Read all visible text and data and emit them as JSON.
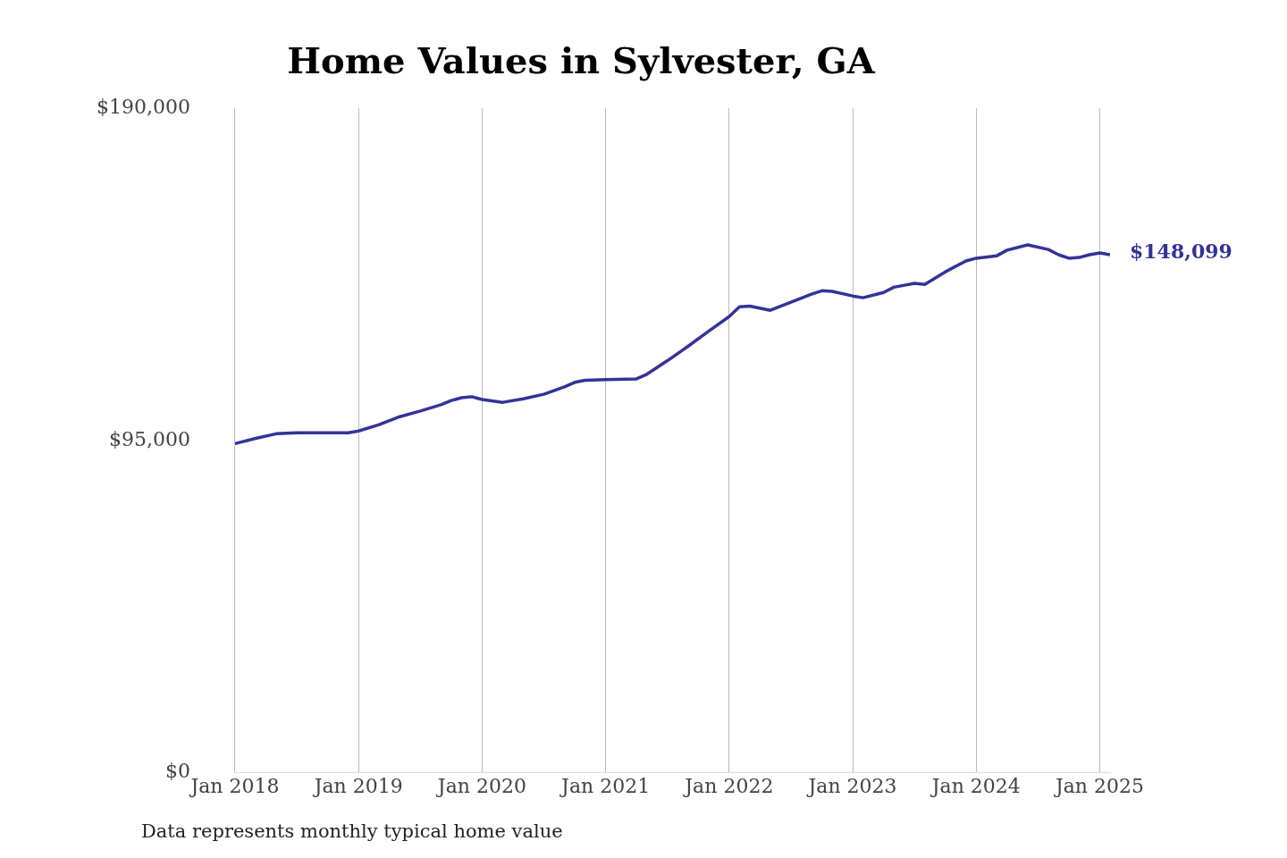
{
  "chart_data": {
    "type": "line",
    "title": "Home Values in Sylvester, GA",
    "x": [
      "2018-01",
      "2018-03",
      "2018-05",
      "2018-07",
      "2018-09",
      "2018-12",
      "2019-01",
      "2019-03",
      "2019-05",
      "2019-07",
      "2019-09",
      "2019-10",
      "2019-11",
      "2019-12",
      "2020-01",
      "2020-03",
      "2020-05",
      "2020-07",
      "2020-09",
      "2020-10",
      "2020-11",
      "2021-01",
      "2021-04",
      "2021-05",
      "2021-07",
      "2021-09",
      "2021-11",
      "2022-01",
      "2022-02",
      "2022-03",
      "2022-05",
      "2022-07",
      "2022-09",
      "2022-10",
      "2022-11",
      "2023-01",
      "2023-02",
      "2023-04",
      "2023-05",
      "2023-07",
      "2023-08",
      "2023-10",
      "2023-12",
      "2024-01",
      "2024-03",
      "2024-04",
      "2024-06",
      "2024-08",
      "2024-09",
      "2024-10",
      "2024-11",
      "2024-12",
      "2025-01",
      "2025-02"
    ],
    "series": [
      {
        "color": "#333399",
        "values": [
          94100,
          95600,
          96900,
          97200,
          97200,
          97200,
          97700,
          99500,
          101800,
          103400,
          105200,
          106400,
          107200,
          107500,
          106700,
          105900,
          106900,
          108200,
          110300,
          111600,
          112200,
          112400,
          112600,
          113900,
          117800,
          121900,
          126200,
          130400,
          133200,
          133400,
          132200,
          134500,
          136800,
          137800,
          137600,
          136300,
          135800,
          137300,
          138800,
          139900,
          139600,
          143200,
          146300,
          147100,
          147800,
          149400,
          150900,
          149600,
          148100,
          147100,
          147300,
          148100,
          148600,
          148099
        ]
      }
    ],
    "xticks": [
      {
        "value": "2018-01",
        "label": "Jan 2018"
      },
      {
        "value": "2019-01",
        "label": "Jan 2019"
      },
      {
        "value": "2020-01",
        "label": "Jan 2020"
      },
      {
        "value": "2021-01",
        "label": "Jan 2021"
      },
      {
        "value": "2022-01",
        "label": "Jan 2022"
      },
      {
        "value": "2023-01",
        "label": "Jan 2023"
      },
      {
        "value": "2024-01",
        "label": "Jan 2024"
      },
      {
        "value": "2025-01",
        "label": "Jan 2025"
      }
    ],
    "xlim": [
      "2018-01",
      "2025-02"
    ],
    "ylim": [
      0,
      190000
    ],
    "yticks": [
      {
        "value": 0,
        "label": "$0"
      },
      {
        "value": 95000,
        "label": "$95,000"
      },
      {
        "value": 190000,
        "label": "$190,000"
      }
    ],
    "grid": "x",
    "legend": false,
    "marker": "none",
    "line_style": "solid",
    "annotations": [
      {
        "text": "$148,099",
        "x": "2025-02",
        "y": 148099
      },
      "Data represents monthly typical home value"
    ]
  }
}
